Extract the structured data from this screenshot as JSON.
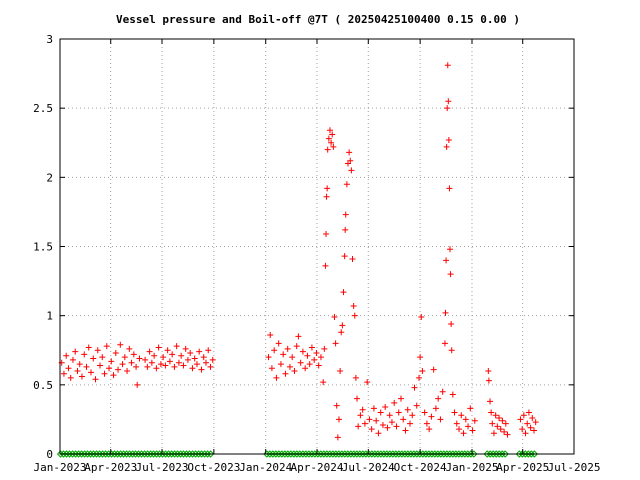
{
  "chart_data": {
    "type": "scatter",
    "title": "Vessel pressure and Boil-off @7T ( 20250425100400 0.15 0.00 )",
    "xlabel": "",
    "ylabel": "",
    "grid": true,
    "legend": "none",
    "x_type": "date",
    "xlim": [
      "2023-01-01",
      "2025-07-01"
    ],
    "ylim": [
      0,
      3
    ],
    "x_ticks": [
      {
        "value": "2023-01-01",
        "label": "Jan-2023"
      },
      {
        "value": "2023-04-01",
        "label": "Apr-2023"
      },
      {
        "value": "2023-07-01",
        "label": "Jul-2023"
      },
      {
        "value": "2023-10-01",
        "label": "Oct-2023"
      },
      {
        "value": "2024-01-01",
        "label": "Jan-2024"
      },
      {
        "value": "2024-04-01",
        "label": "Apr-2024"
      },
      {
        "value": "2024-07-01",
        "label": "Jul-2024"
      },
      {
        "value": "2024-10-01",
        "label": "Oct-2024"
      },
      {
        "value": "2025-01-01",
        "label": "Jan-2025"
      },
      {
        "value": "2025-04-01",
        "label": "Apr-2025"
      },
      {
        "value": "2025-07-01",
        "label": "Jul-2025"
      }
    ],
    "y_ticks": [
      {
        "value": 0,
        "label": "0"
      },
      {
        "value": 0.5,
        "label": "0.5"
      },
      {
        "value": 1,
        "label": "1"
      },
      {
        "value": 1.5,
        "label": "1.5"
      },
      {
        "value": 2,
        "label": "2"
      },
      {
        "value": 2.5,
        "label": "2.5"
      },
      {
        "value": 3,
        "label": "3"
      }
    ],
    "colors": {
      "pressure": "#ff0000",
      "boiloff": "#00aa00",
      "grid": "#a0a0a0",
      "axis": "#000000"
    },
    "series": [
      {
        "marker": "plus",
        "color": "#ff0000",
        "points": [
          [
            "2023-01-04",
            0.66
          ],
          [
            "2023-01-08",
            0.58
          ],
          [
            "2023-01-12",
            0.71
          ],
          [
            "2023-01-16",
            0.62
          ],
          [
            "2023-01-20",
            0.55
          ],
          [
            "2023-01-24",
            0.68
          ],
          [
            "2023-01-28",
            0.74
          ],
          [
            "2023-02-01",
            0.6
          ],
          [
            "2023-02-05",
            0.65
          ],
          [
            "2023-02-09",
            0.56
          ],
          [
            "2023-02-13",
            0.72
          ],
          [
            "2023-02-17",
            0.63
          ],
          [
            "2023-02-21",
            0.77
          ],
          [
            "2023-02-25",
            0.59
          ],
          [
            "2023-03-01",
            0.69
          ],
          [
            "2023-03-05",
            0.54
          ],
          [
            "2023-03-09",
            0.75
          ],
          [
            "2023-03-13",
            0.64
          ],
          [
            "2023-03-17",
            0.7
          ],
          [
            "2023-03-21",
            0.58
          ],
          [
            "2023-03-25",
            0.78
          ],
          [
            "2023-03-29",
            0.62
          ],
          [
            "2023-04-02",
            0.67
          ],
          [
            "2023-04-06",
            0.57
          ],
          [
            "2023-04-10",
            0.73
          ],
          [
            "2023-04-14",
            0.61
          ],
          [
            "2023-04-18",
            0.79
          ],
          [
            "2023-04-22",
            0.65
          ],
          [
            "2023-04-26",
            0.7
          ],
          [
            "2023-04-30",
            0.6
          ],
          [
            "2023-05-04",
            0.76
          ],
          [
            "2023-05-08",
            0.66
          ],
          [
            "2023-05-12",
            0.72
          ],
          [
            "2023-05-16",
            0.63
          ],
          [
            "2023-05-18",
            0.5
          ],
          [
            "2023-05-22",
            0.69
          ],
          [
            "2023-06-01",
            0.68
          ],
          [
            "2023-06-05",
            0.63
          ],
          [
            "2023-06-09",
            0.74
          ],
          [
            "2023-06-13",
            0.66
          ],
          [
            "2023-06-17",
            0.71
          ],
          [
            "2023-06-21",
            0.62
          ],
          [
            "2023-06-25",
            0.77
          ],
          [
            "2023-06-29",
            0.65
          ],
          [
            "2023-07-03",
            0.7
          ],
          [
            "2023-07-07",
            0.64
          ],
          [
            "2023-07-11",
            0.75
          ],
          [
            "2023-07-15",
            0.67
          ],
          [
            "2023-07-19",
            0.72
          ],
          [
            "2023-07-23",
            0.63
          ],
          [
            "2023-07-27",
            0.78
          ],
          [
            "2023-07-31",
            0.66
          ],
          [
            "2023-08-04",
            0.71
          ],
          [
            "2023-08-08",
            0.64
          ],
          [
            "2023-08-12",
            0.76
          ],
          [
            "2023-08-16",
            0.68
          ],
          [
            "2023-08-20",
            0.73
          ],
          [
            "2023-08-24",
            0.62
          ],
          [
            "2023-08-28",
            0.69
          ],
          [
            "2023-09-01",
            0.65
          ],
          [
            "2023-09-05",
            0.74
          ],
          [
            "2023-09-09",
            0.61
          ],
          [
            "2023-09-13",
            0.7
          ],
          [
            "2023-09-17",
            0.66
          ],
          [
            "2023-09-21",
            0.75
          ],
          [
            "2023-09-25",
            0.63
          ],
          [
            "2023-09-29",
            0.68
          ],
          [
            "2024-01-06",
            0.7
          ],
          [
            "2024-01-09",
            0.86
          ],
          [
            "2024-01-12",
            0.62
          ],
          [
            "2024-01-16",
            0.75
          ],
          [
            "2024-01-20",
            0.55
          ],
          [
            "2024-01-24",
            0.8
          ],
          [
            "2024-01-28",
            0.65
          ],
          [
            "2024-02-01",
            0.72
          ],
          [
            "2024-02-05",
            0.58
          ],
          [
            "2024-02-09",
            0.76
          ],
          [
            "2024-02-13",
            0.63
          ],
          [
            "2024-02-17",
            0.7
          ],
          [
            "2024-02-21",
            0.6
          ],
          [
            "2024-02-25",
            0.78
          ],
          [
            "2024-02-28",
            0.85
          ],
          [
            "2024-03-03",
            0.66
          ],
          [
            "2024-03-07",
            0.74
          ],
          [
            "2024-03-11",
            0.62
          ],
          [
            "2024-03-15",
            0.71
          ],
          [
            "2024-03-19",
            0.65
          ],
          [
            "2024-03-23",
            0.77
          ],
          [
            "2024-03-27",
            0.68
          ],
          [
            "2024-03-31",
            0.73
          ],
          [
            "2024-04-04",
            0.64
          ],
          [
            "2024-04-08",
            0.7
          ],
          [
            "2024-04-12",
            0.52
          ],
          [
            "2024-04-14",
            0.76
          ],
          [
            "2024-04-16",
            1.36
          ],
          [
            "2024-04-17",
            1.59
          ],
          [
            "2024-04-18",
            1.86
          ],
          [
            "2024-04-19",
            1.92
          ],
          [
            "2024-04-20",
            2.2
          ],
          [
            "2024-04-22",
            2.28
          ],
          [
            "2024-04-24",
            2.34
          ],
          [
            "2024-04-26",
            2.25
          ],
          [
            "2024-04-28",
            2.31
          ],
          [
            "2024-04-30",
            2.22
          ],
          [
            "2024-05-02",
            0.99
          ],
          [
            "2024-05-04",
            0.8
          ],
          [
            "2024-05-06",
            0.35
          ],
          [
            "2024-05-08",
            0.12
          ],
          [
            "2024-05-10",
            0.25
          ],
          [
            "2024-05-12",
            0.6
          ],
          [
            "2024-05-14",
            0.88
          ],
          [
            "2024-05-16",
            0.93
          ],
          [
            "2024-05-18",
            1.17
          ],
          [
            "2024-05-20",
            1.43
          ],
          [
            "2024-05-21",
            1.62
          ],
          [
            "2024-05-22",
            1.73
          ],
          [
            "2024-05-24",
            1.95
          ],
          [
            "2024-05-26",
            2.1
          ],
          [
            "2024-05-28",
            2.18
          ],
          [
            "2024-05-30",
            2.12
          ],
          [
            "2024-06-01",
            2.05
          ],
          [
            "2024-06-03",
            1.41
          ],
          [
            "2024-06-05",
            1.07
          ],
          [
            "2024-06-07",
            1.0
          ],
          [
            "2024-06-09",
            0.55
          ],
          [
            "2024-06-11",
            0.4
          ],
          [
            "2024-06-13",
            0.2
          ],
          [
            "2024-06-17",
            0.28
          ],
          [
            "2024-06-21",
            0.32
          ],
          [
            "2024-06-25",
            0.22
          ],
          [
            "2024-06-29",
            0.52
          ],
          [
            "2024-07-03",
            0.25
          ],
          [
            "2024-07-07",
            0.18
          ],
          [
            "2024-07-11",
            0.33
          ],
          [
            "2024-07-15",
            0.24
          ],
          [
            "2024-07-19",
            0.15
          ],
          [
            "2024-07-23",
            0.3
          ],
          [
            "2024-07-27",
            0.21
          ],
          [
            "2024-07-31",
            0.34
          ],
          [
            "2024-08-04",
            0.19
          ],
          [
            "2024-08-08",
            0.28
          ],
          [
            "2024-08-12",
            0.23
          ],
          [
            "2024-08-16",
            0.37
          ],
          [
            "2024-08-20",
            0.2
          ],
          [
            "2024-08-24",
            0.3
          ],
          [
            "2024-08-28",
            0.4
          ],
          [
            "2024-09-01",
            0.25
          ],
          [
            "2024-09-05",
            0.17
          ],
          [
            "2024-09-09",
            0.32
          ],
          [
            "2024-09-13",
            0.22
          ],
          [
            "2024-09-17",
            0.28
          ],
          [
            "2024-09-21",
            0.48
          ],
          [
            "2024-09-25",
            0.35
          ],
          [
            "2024-09-29",
            0.55
          ],
          [
            "2024-10-01",
            0.7
          ],
          [
            "2024-10-03",
            0.99
          ],
          [
            "2024-10-05",
            0.6
          ],
          [
            "2024-10-09",
            0.3
          ],
          [
            "2024-10-13",
            0.22
          ],
          [
            "2024-10-17",
            0.18
          ],
          [
            "2024-10-21",
            0.27
          ],
          [
            "2024-10-25",
            0.61
          ],
          [
            "2024-10-29",
            0.33
          ],
          [
            "2024-11-02",
            0.4
          ],
          [
            "2024-11-06",
            0.25
          ],
          [
            "2024-11-10",
            0.45
          ],
          [
            "2024-11-14",
            0.8
          ],
          [
            "2024-11-15",
            1.02
          ],
          [
            "2024-11-16",
            1.4
          ],
          [
            "2024-11-17",
            2.22
          ],
          [
            "2024-11-18",
            2.5
          ],
          [
            "2024-11-19",
            2.81
          ],
          [
            "2024-11-20",
            2.55
          ],
          [
            "2024-11-21",
            2.27
          ],
          [
            "2024-11-22",
            1.92
          ],
          [
            "2024-11-23",
            1.48
          ],
          [
            "2024-11-24",
            1.3
          ],
          [
            "2024-11-25",
            0.94
          ],
          [
            "2024-11-26",
            0.75
          ],
          [
            "2024-11-28",
            0.43
          ],
          [
            "2024-12-01",
            0.3
          ],
          [
            "2024-12-05",
            0.22
          ],
          [
            "2024-12-09",
            0.18
          ],
          [
            "2024-12-13",
            0.28
          ],
          [
            "2024-12-17",
            0.15
          ],
          [
            "2024-12-21",
            0.25
          ],
          [
            "2024-12-25",
            0.2
          ],
          [
            "2024-12-29",
            0.33
          ],
          [
            "2025-01-02",
            0.17
          ],
          [
            "2025-01-06",
            0.24
          ],
          [
            "2025-01-30",
            0.6
          ],
          [
            "2025-01-31",
            0.53
          ],
          [
            "2025-02-02",
            0.38
          ],
          [
            "2025-02-04",
            0.3
          ],
          [
            "2025-02-06",
            0.22
          ],
          [
            "2025-02-09",
            0.15
          ],
          [
            "2025-02-12",
            0.28
          ],
          [
            "2025-02-15",
            0.2
          ],
          [
            "2025-02-18",
            0.26
          ],
          [
            "2025-02-21",
            0.18
          ],
          [
            "2025-02-24",
            0.24
          ],
          [
            "2025-02-27",
            0.16
          ],
          [
            "2025-03-02",
            0.22
          ],
          [
            "2025-03-05",
            0.14
          ],
          [
            "2025-03-28",
            0.25
          ],
          [
            "2025-03-31",
            0.18
          ],
          [
            "2025-04-03",
            0.28
          ],
          [
            "2025-04-06",
            0.15
          ],
          [
            "2025-04-09",
            0.22
          ],
          [
            "2025-04-12",
            0.3
          ],
          [
            "2025-04-15",
            0.19
          ],
          [
            "2025-04-18",
            0.26
          ],
          [
            "2025-04-21",
            0.17
          ],
          [
            "2025-04-24",
            0.23
          ]
        ]
      },
      {
        "marker": "diamond",
        "color": "#00aa00",
        "segments": [
          [
            "2023-01-02",
            "2023-09-30",
            0
          ],
          [
            "2024-01-03",
            "2025-01-08",
            0
          ],
          [
            "2025-01-28",
            "2025-03-06",
            0
          ],
          [
            "2025-03-26",
            "2025-04-25",
            0
          ]
        ]
      }
    ]
  }
}
